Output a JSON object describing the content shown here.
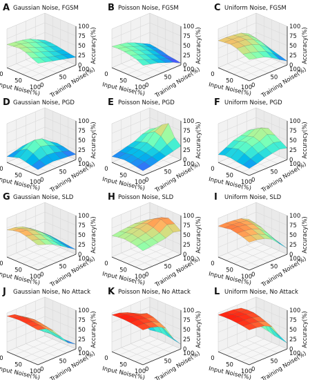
{
  "colors": {
    "colormap": "rainbow",
    "grid": "#d9d9d9",
    "pane": "#f2f2f2",
    "axis": "#222222"
  },
  "axes_labels": {
    "xlabel": "Input Noise(%)",
    "ylabel": "Training Noise(%)",
    "zlabel": "Accuracy(%)",
    "x_ticks": [
      "0",
      "50",
      "100"
    ],
    "y_ticks": [
      "0",
      "50",
      "100"
    ],
    "z_ticks": [
      "0",
      "25",
      "50",
      "75",
      "100"
    ]
  },
  "chart_data": [
    {
      "letter": "A",
      "title": "Gaussian Noise, FGSM",
      "type": "surface",
      "x_range": [
        0,
        100
      ],
      "y_range": [
        0,
        100
      ],
      "zlim": [
        0,
        100
      ],
      "x": [
        0,
        20,
        40,
        60,
        80,
        100
      ],
      "y": [
        0,
        20,
        40,
        60,
        80,
        100
      ],
      "z": [
        [
          60,
          58,
          55,
          50,
          40,
          30
        ],
        [
          62,
          60,
          55,
          48,
          38,
          30
        ],
        [
          64,
          58,
          50,
          42,
          35,
          28
        ],
        [
          60,
          52,
          45,
          38,
          30,
          25
        ],
        [
          52,
          45,
          38,
          32,
          28,
          22
        ],
        [
          45,
          40,
          35,
          30,
          25,
          20
        ]
      ]
    },
    {
      "letter": "B",
      "title": "Poisson Noise, FGSM",
      "type": "surface",
      "x_range": [
        0,
        100
      ],
      "y_range": [
        0,
        100
      ],
      "zlim": [
        0,
        100
      ],
      "x": [
        0,
        20,
        40,
        60,
        80,
        100
      ],
      "y": [
        0,
        20,
        40,
        60,
        80,
        100
      ],
      "z": [
        [
          55,
          52,
          48,
          40,
          30,
          20
        ],
        [
          56,
          52,
          45,
          38,
          28,
          18
        ],
        [
          55,
          50,
          42,
          35,
          25,
          15
        ],
        [
          52,
          46,
          38,
          30,
          20,
          10
        ],
        [
          48,
          40,
          32,
          25,
          18,
          8
        ],
        [
          40,
          35,
          30,
          22,
          15,
          5
        ]
      ]
    },
    {
      "letter": "C",
      "title": "Uniform Noise, FGSM",
      "type": "surface",
      "x_range": [
        0,
        100
      ],
      "y_range": [
        0,
        100
      ],
      "zlim": [
        0,
        100
      ],
      "x": [
        0,
        20,
        40,
        60,
        80,
        100
      ],
      "y": [
        0,
        20,
        40,
        60,
        80,
        100
      ],
      "z": [
        [
          70,
          70,
          68,
          65,
          55,
          35
        ],
        [
          72,
          72,
          70,
          66,
          52,
          30
        ],
        [
          74,
          72,
          70,
          62,
          48,
          25
        ],
        [
          70,
          68,
          64,
          55,
          40,
          20
        ],
        [
          62,
          58,
          52,
          45,
          30,
          15
        ],
        [
          55,
          50,
          45,
          35,
          22,
          10
        ]
      ]
    },
    {
      "letter": "D",
      "title": "Gaussian Noise, PGD",
      "type": "surface",
      "x_range": [
        0,
        100
      ],
      "y_range": [
        0,
        100
      ],
      "zlim": [
        0,
        100
      ],
      "x": [
        0,
        20,
        40,
        60,
        80,
        100
      ],
      "y": [
        0,
        20,
        40,
        60,
        80,
        100
      ],
      "z": [
        [
          15,
          20,
          25,
          22,
          18,
          15
        ],
        [
          20,
          30,
          40,
          35,
          25,
          18
        ],
        [
          25,
          40,
          55,
          50,
          35,
          22
        ],
        [
          22,
          35,
          45,
          40,
          30,
          20
        ],
        [
          18,
          25,
          30,
          28,
          22,
          16
        ],
        [
          15,
          18,
          20,
          18,
          16,
          14
        ]
      ]
    },
    {
      "letter": "E",
      "title": "Poisson Noise, PGD",
      "type": "surface",
      "x_range": [
        0,
        100
      ],
      "y_range": [
        0,
        100
      ],
      "zlim": [
        0,
        100
      ],
      "x": [
        0,
        20,
        40,
        60,
        80,
        100
      ],
      "y": [
        0,
        20,
        40,
        60,
        80,
        100
      ],
      "z": [
        [
          15,
          20,
          25,
          30,
          40,
          45
        ],
        [
          18,
          22,
          28,
          35,
          50,
          55
        ],
        [
          20,
          25,
          30,
          40,
          60,
          70
        ],
        [
          18,
          22,
          28,
          35,
          55,
          80
        ],
        [
          15,
          20,
          25,
          30,
          40,
          50
        ],
        [
          12,
          15,
          20,
          25,
          30,
          35
        ]
      ]
    },
    {
      "letter": "F",
      "title": "Uniform Noise, PGD",
      "type": "surface",
      "x_range": [
        0,
        100
      ],
      "y_range": [
        0,
        100
      ],
      "zlim": [
        0,
        100
      ],
      "x": [
        0,
        20,
        40,
        60,
        80,
        100
      ],
      "y": [
        0,
        20,
        40,
        60,
        80,
        100
      ],
      "z": [
        [
          20,
          30,
          40,
          45,
          50,
          45
        ],
        [
          25,
          35,
          45,
          50,
          60,
          55
        ],
        [
          25,
          40,
          50,
          55,
          70,
          60
        ],
        [
          22,
          35,
          45,
          50,
          60,
          50
        ],
        [
          20,
          28,
          35,
          40,
          45,
          40
        ],
        [
          18,
          22,
          28,
          32,
          35,
          30
        ]
      ]
    },
    {
      "letter": "G",
      "title": "Gaussian Noise, SLD",
      "type": "surface",
      "x_range": [
        0,
        100
      ],
      "y_range": [
        0,
        100
      ],
      "zlim": [
        0,
        100
      ],
      "x": [
        0,
        20,
        40,
        60,
        80,
        100
      ],
      "y": [
        0,
        20,
        40,
        60,
        80,
        100
      ],
      "z": [
        [
          70,
          68,
          62,
          50,
          35,
          20
        ],
        [
          75,
          72,
          65,
          52,
          36,
          20
        ],
        [
          78,
          75,
          66,
          52,
          35,
          18
        ],
        [
          75,
          70,
          62,
          48,
          32,
          16
        ],
        [
          70,
          65,
          56,
          42,
          28,
          14
        ],
        [
          65,
          58,
          50,
          38,
          25,
          12
        ]
      ]
    },
    {
      "letter": "H",
      "title": "Poisson Noise, SLD",
      "type": "surface",
      "x_range": [
        0,
        100
      ],
      "y_range": [
        0,
        100
      ],
      "zlim": [
        0,
        100
      ],
      "x": [
        0,
        20,
        40,
        60,
        80,
        100
      ],
      "y": [
        0,
        20,
        40,
        60,
        80,
        100
      ],
      "z": [
        [
          55,
          58,
          60,
          62,
          60,
          55
        ],
        [
          58,
          62,
          66,
          68,
          70,
          65
        ],
        [
          60,
          65,
          70,
          75,
          80,
          75
        ],
        [
          58,
          62,
          66,
          72,
          85,
          80
        ],
        [
          55,
          58,
          60,
          65,
          78,
          72
        ],
        [
          50,
          52,
          55,
          58,
          65,
          60
        ]
      ]
    },
    {
      "letter": "I",
      "title": "Uniform Noise, SLD",
      "type": "surface",
      "x_range": [
        0,
        100
      ],
      "y_range": [
        0,
        100
      ],
      "zlim": [
        0,
        100
      ],
      "x": [
        0,
        20,
        40,
        60,
        80,
        100
      ],
      "y": [
        0,
        20,
        40,
        60,
        80,
        100
      ],
      "z": [
        [
          80,
          80,
          78,
          75,
          65,
          40
        ],
        [
          82,
          82,
          80,
          76,
          62,
          35
        ],
        [
          85,
          84,
          80,
          74,
          58,
          30
        ],
        [
          82,
          80,
          76,
          68,
          50,
          25
        ],
        [
          78,
          75,
          70,
          60,
          42,
          20
        ],
        [
          72,
          70,
          65,
          55,
          35,
          15
        ]
      ]
    },
    {
      "letter": "J",
      "title": "Gaussian Noise, No Attack",
      "type": "surface",
      "x_range": [
        0,
        100
      ],
      "y_range": [
        0,
        100
      ],
      "zlim": [
        0,
        100
      ],
      "x": [
        0,
        20,
        40,
        60,
        80,
        100
      ],
      "y": [
        0,
        20,
        40,
        60,
        80,
        100
      ],
      "z": [
        [
          92,
          88,
          75,
          50,
          25,
          12
        ],
        [
          94,
          90,
          78,
          52,
          26,
          12
        ],
        [
          95,
          92,
          80,
          55,
          28,
          12
        ],
        [
          94,
          90,
          78,
          52,
          26,
          12
        ],
        [
          92,
          88,
          75,
          50,
          25,
          12
        ],
        [
          90,
          85,
          72,
          48,
          24,
          12
        ]
      ]
    },
    {
      "letter": "K",
      "title": "Poisson Noise, No Attack",
      "type": "surface",
      "x_range": [
        0,
        100
      ],
      "y_range": [
        0,
        100
      ],
      "zlim": [
        0,
        100
      ],
      "x": [
        0,
        20,
        40,
        60,
        80,
        100
      ],
      "y": [
        0,
        20,
        40,
        60,
        80,
        100
      ],
      "z": [
        [
          95,
          92,
          85,
          70,
          40,
          15
        ],
        [
          96,
          95,
          90,
          80,
          50,
          18
        ],
        [
          96,
          96,
          92,
          88,
          60,
          20
        ],
        [
          95,
          95,
          90,
          85,
          55,
          18
        ],
        [
          93,
          92,
          88,
          78,
          45,
          15
        ],
        [
          90,
          88,
          82,
          70,
          35,
          12
        ]
      ]
    },
    {
      "letter": "L",
      "title": "Uniform Noise, No Attack",
      "type": "surface",
      "x_range": [
        0,
        100
      ],
      "y_range": [
        0,
        100
      ],
      "zlim": [
        0,
        100
      ],
      "x": [
        0,
        20,
        40,
        60,
        80,
        100
      ],
      "y": [
        0,
        20,
        40,
        60,
        80,
        100
      ],
      "z": [
        [
          95,
          94,
          92,
          88,
          70,
          30
        ],
        [
          96,
          95,
          93,
          90,
          72,
          28
        ],
        [
          96,
          96,
          94,
          90,
          68,
          25
        ],
        [
          95,
          94,
          92,
          86,
          60,
          20
        ],
        [
          93,
          92,
          88,
          80,
          50,
          18
        ],
        [
          90,
          88,
          84,
          74,
          42,
          15
        ]
      ]
    }
  ]
}
